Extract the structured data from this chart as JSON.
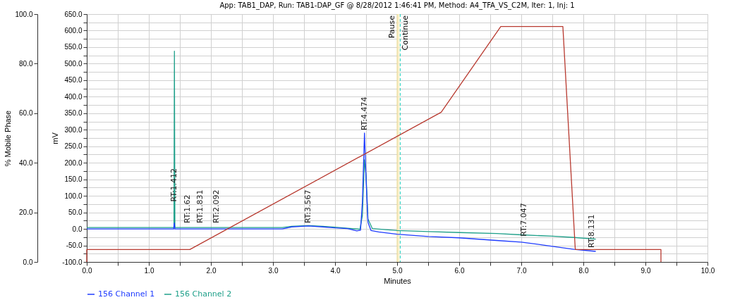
{
  "chart_data": {
    "type": "line",
    "title": "App: TAB1_DAP, Run: TAB1-DAP_GF @ 8/28/2012 1:46:41 PM, Method: A4_TFA_VS_C2M, Iter: 1, Inj: 1",
    "xlabel": "Minutes",
    "ylabel": "% Mobile Phase",
    "y2label": "mV",
    "xlim": [
      0,
      10
    ],
    "xticks": [
      {
        "value": 0,
        "label": "0.0"
      },
      {
        "value": 0.5,
        "label": null
      },
      {
        "value": 1,
        "label": "1.0"
      },
      {
        "value": 1.5,
        "label": null
      },
      {
        "value": 2,
        "label": "2.0"
      },
      {
        "value": 2.5,
        "label": null
      },
      {
        "value": 3,
        "label": "3.0"
      },
      {
        "value": 3.5,
        "label": null
      },
      {
        "value": 4,
        "label": "4.0"
      },
      {
        "value": 4.5,
        "label": null
      },
      {
        "value": 5,
        "label": "5.0"
      },
      {
        "value": 5.5,
        "label": null
      },
      {
        "value": 6,
        "label": "6.0"
      },
      {
        "value": 6.5,
        "label": null
      },
      {
        "value": 7,
        "label": "7.0"
      },
      {
        "value": 7.5,
        "label": null
      },
      {
        "value": 8,
        "label": "8.0"
      },
      {
        "value": 8.5,
        "label": null
      },
      {
        "value": 9,
        "label": "9.0"
      },
      {
        "value": 9.5,
        "label": null
      },
      {
        "value": 10,
        "label": "10.0"
      }
    ],
    "ylim": [
      0,
      100
    ],
    "yticks": [
      {
        "value": 0,
        "label": "0.0"
      },
      {
        "value": 10,
        "label": null
      },
      {
        "value": 20,
        "label": "20.0"
      },
      {
        "value": 30,
        "label": null
      },
      {
        "value": 40,
        "label": "40.0"
      },
      {
        "value": 50,
        "label": null
      },
      {
        "value": 60,
        "label": "60.0"
      },
      {
        "value": 70,
        "label": null
      },
      {
        "value": 80,
        "label": "80.0"
      },
      {
        "value": 90,
        "label": null
      },
      {
        "value": 100,
        "label": "100.0"
      }
    ],
    "y2lim": [
      -100,
      650
    ],
    "y2ticks": [
      {
        "value": -100,
        "label": "-100.0"
      },
      {
        "value": -75,
        "label": null
      },
      {
        "value": -50,
        "label": "-50.0"
      },
      {
        "value": -25,
        "label": null
      },
      {
        "value": 0,
        "label": "0.0"
      },
      {
        "value": 25,
        "label": null
      },
      {
        "value": 50,
        "label": "50.0"
      },
      {
        "value": 75,
        "label": null
      },
      {
        "value": 100,
        "label": "100.0"
      },
      {
        "value": 125,
        "label": null
      },
      {
        "value": 150,
        "label": "150.0"
      },
      {
        "value": 175,
        "label": null
      },
      {
        "value": 200,
        "label": "200.0"
      },
      {
        "value": 225,
        "label": null
      },
      {
        "value": 250,
        "label": "250.0"
      },
      {
        "value": 275,
        "label": null
      },
      {
        "value": 300,
        "label": "300.0"
      },
      {
        "value": 325,
        "label": null
      },
      {
        "value": 350,
        "label": "350.0"
      },
      {
        "value": 375,
        "label": null
      },
      {
        "value": 400,
        "label": "400.0"
      },
      {
        "value": 425,
        "label": null
      },
      {
        "value": 450,
        "label": "450.0"
      },
      {
        "value": 475,
        "label": null
      },
      {
        "value": 500,
        "label": "500.0"
      },
      {
        "value": 525,
        "label": null
      },
      {
        "value": 550,
        "label": "550.0"
      },
      {
        "value": 575,
        "label": null
      },
      {
        "value": 600,
        "label": "600.0"
      },
      {
        "value": 625,
        "label": null
      },
      {
        "value": 650,
        "label": "650.0"
      }
    ],
    "grid": true,
    "legend": "bottom left",
    "line_style": "solid",
    "marker": "none",
    "series": [
      {
        "name": "156 Channel 1",
        "color": "#1f3cff",
        "axis": "y2",
        "x": [
          0,
          1.4,
          1.41,
          1.42,
          1.7,
          3.15,
          3.3,
          3.57,
          3.8,
          4.0,
          4.2,
          4.35,
          4.41,
          4.44,
          4.474,
          4.5,
          4.53,
          4.58,
          4.7,
          5.0,
          5.5,
          6.0,
          6.6,
          7.0,
          7.4,
          7.85,
          8.2
        ],
        "values": [
          0,
          0,
          18,
          0,
          0,
          0,
          6,
          9,
          6,
          3,
          1,
          -6,
          -4,
          80,
          290,
          150,
          20,
          -5,
          -9,
          -16,
          -23,
          -27,
          -35,
          -40,
          -50,
          -62,
          -68
        ]
      },
      {
        "name": "156 Channel 2",
        "color": "#1fa08a",
        "axis": "y2",
        "x": [
          0,
          1.405,
          1.412,
          1.42,
          3.15,
          3.3,
          3.57,
          3.8,
          4.0,
          4.2,
          4.4,
          4.44,
          4.474,
          4.5,
          4.53,
          4.6,
          5.0,
          5.5,
          6.0,
          6.6,
          7.0,
          7.5,
          7.85,
          8.2
        ],
        "values": [
          4,
          4,
          538,
          4,
          4,
          8,
          10,
          8,
          5,
          2,
          -1,
          40,
          209,
          160,
          30,
          1,
          -5,
          -8,
          -11,
          -14,
          -18,
          -22,
          -26,
          -31
        ]
      },
      {
        "color": "#b83a30",
        "x": [
          0,
          0,
          1.66,
          5.71,
          6.67,
          7.67,
          7.87,
          9.25,
          9.25
        ],
        "values": [
          0,
          5,
          5,
          60.4,
          95,
          95,
          5,
          5,
          0
        ]
      }
    ],
    "bands": [
      {
        "axis": "x",
        "from": 5.0,
        "to": 5.04,
        "color": "#fbeec0"
      }
    ],
    "ref_lines": [
      {
        "axis": "x",
        "value": 5.0,
        "label": "Pause",
        "color": "#e8d890",
        "line_style": "solid"
      },
      {
        "axis": "x",
        "value": 5.05,
        "label": "Continue",
        "color": "#20d0c0",
        "line_style": "dashed"
      }
    ],
    "annotations": [
      {
        "text": "RT:1.412",
        "x": 1.412,
        "y": 24.3
      },
      {
        "text": "RT:1.62",
        "x": 1.62,
        "y": 15.6
      },
      {
        "text": "RT:1.831",
        "x": 1.831,
        "y": 15.6
      },
      {
        "text": "RT:2.092",
        "x": 2.092,
        "y": 15.6
      },
      {
        "text": "RT:3.567",
        "x": 3.567,
        "y": 15.6
      },
      {
        "text": "RT:4.474",
        "x": 4.474,
        "y": 53.1
      },
      {
        "text": "RT:7.047",
        "x": 7.047,
        "y": 10.3
      },
      {
        "text": "RT:8.131",
        "x": 8.131,
        "y": 5.7
      }
    ]
  }
}
